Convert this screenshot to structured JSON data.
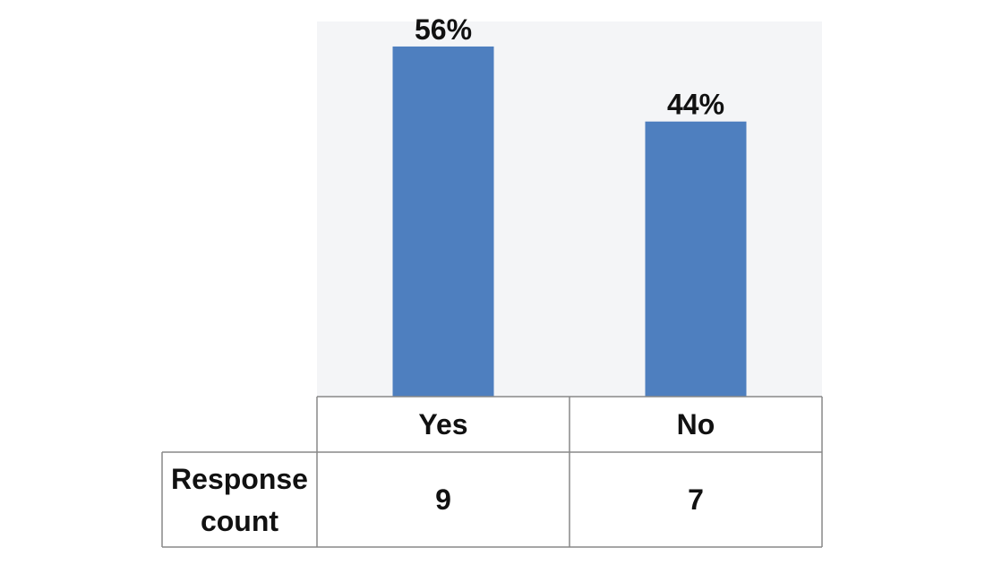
{
  "chart_data": {
    "type": "bar",
    "categories": [
      "Yes",
      "No"
    ],
    "values": [
      56,
      44
    ],
    "value_labels": [
      "56%",
      "44%"
    ],
    "ylim": [
      0,
      60
    ],
    "grid": false,
    "legend": "none",
    "colors": {
      "bar": "#4e7fbf",
      "plot_background": "#f4f5f7",
      "table_border": "#888888"
    },
    "table": {
      "row_header": [
        "Response",
        "count"
      ],
      "counts": [
        "9",
        "7"
      ]
    }
  }
}
